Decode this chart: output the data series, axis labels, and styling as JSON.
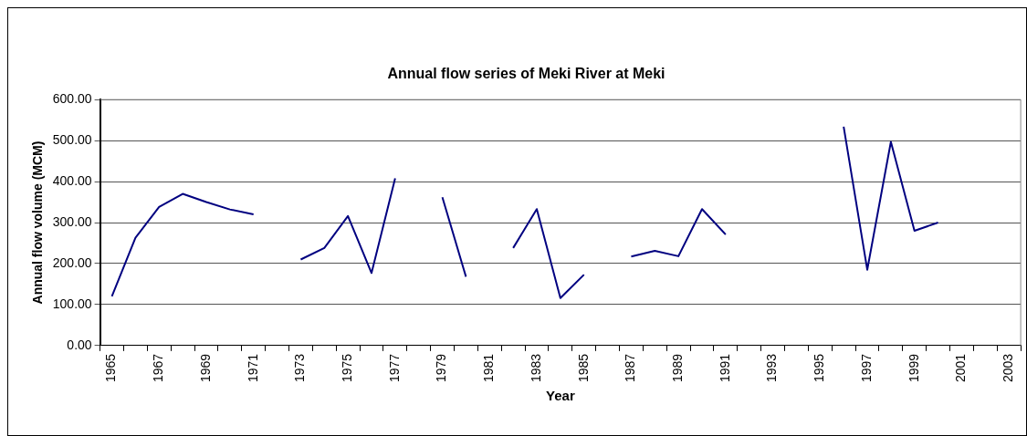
{
  "chart_data": {
    "type": "line",
    "title": "Annual flow series of Meki River at Meki",
    "xlabel": "Year",
    "ylabel": "Annual flow volume (MCM)",
    "categories": [
      "1965",
      null,
      "1967",
      null,
      "1969",
      null,
      "1971",
      null,
      "1973",
      null,
      "1975",
      null,
      "1977",
      null,
      "1979",
      null,
      "1981",
      null,
      "1983",
      null,
      "1985",
      null,
      "1987",
      null,
      "1989",
      null,
      "1991",
      null,
      "1993",
      null,
      "1995",
      null,
      "1997",
      null,
      "1999",
      null,
      "2001",
      null,
      "2003"
    ],
    "series": [
      {
        "color": "#000080",
        "values": [
          120,
          263,
          338,
          370,
          350,
          332,
          320,
          null,
          210,
          238,
          316,
          177,
          408,
          null,
          362,
          168,
          null,
          238,
          333,
          116,
          173,
          null,
          217,
          231,
          218,
          333,
          271,
          null,
          null,
          null,
          null,
          534,
          185,
          497,
          280,
          300,
          null,
          null,
          null
        ]
      }
    ],
    "ylim": [
      0,
      600
    ],
    "yticks": [
      {
        "value": 0,
        "label": "0.00"
      },
      {
        "value": 100,
        "label": "100.00"
      },
      {
        "value": 200,
        "label": "200.00"
      },
      {
        "value": 300,
        "label": "300.00"
      },
      {
        "value": 400,
        "label": "400.00"
      },
      {
        "value": 500,
        "label": "500.00"
      },
      {
        "value": 600,
        "label": "600.00"
      }
    ],
    "grid": "y",
    "legend": false,
    "marker": "none",
    "line_style": "solid"
  }
}
